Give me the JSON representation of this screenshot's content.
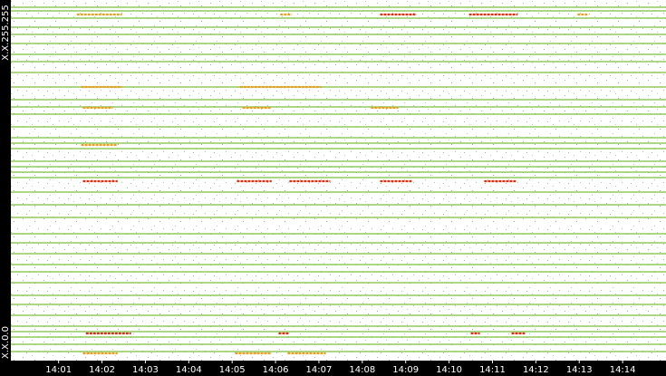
{
  "chart_data": {
    "type": "ip-timeline",
    "y_labels": {
      "top": "X.X.255.255",
      "bottom": "X.X.0.0"
    },
    "xlim": [
      -0.1,
      15.0
    ],
    "xticks": [
      {
        "value": 1,
        "label": "14:01"
      },
      {
        "value": 2,
        "label": "14:02"
      },
      {
        "value": 3,
        "label": "14:03"
      },
      {
        "value": 4,
        "label": "14:04"
      },
      {
        "value": 5,
        "label": "14:05"
      },
      {
        "value": 6,
        "label": "14:06"
      },
      {
        "value": 7,
        "label": "14:07"
      },
      {
        "value": 8,
        "label": "14:08"
      },
      {
        "value": 9,
        "label": "14:09"
      },
      {
        "value": 10,
        "label": "14:10"
      },
      {
        "value": 11,
        "label": "14:11"
      },
      {
        "value": 12,
        "label": "14:12"
      },
      {
        "value": 13,
        "label": "14:13"
      },
      {
        "value": 14,
        "label": "14:14"
      }
    ],
    "ylim": [
      0,
      65535
    ],
    "line_color": "#7dc142",
    "rows": [
      64866,
      64197,
      62860,
      61188,
      59851,
      58179,
      56172,
      54835,
      52829,
      50154,
      47813,
      46476,
      45139,
      42798,
      40792,
      39789,
      38786,
      36445,
      35442,
      34439,
      33436,
      30761,
      28421,
      26080,
      23071,
      21399,
      19393,
      17387,
      16049,
      14043,
      11703,
      10031,
      8025,
      6018,
      5015,
      4012,
      2675,
      1337
    ],
    "hot_segments": [
      {
        "address": 63528,
        "start": 1.42,
        "end": 2.46,
        "color": "#e8a020"
      },
      {
        "address": 63528,
        "start": 6.11,
        "end": 6.37,
        "color": "#e8a020"
      },
      {
        "address": 63528,
        "start": 8.41,
        "end": 9.25,
        "color": "#d83010"
      },
      {
        "address": 63528,
        "start": 10.46,
        "end": 11.58,
        "color": "#d83010"
      },
      {
        "address": 63528,
        "start": 12.96,
        "end": 13.21,
        "color": "#e8a020"
      },
      {
        "address": 50154,
        "start": 1.52,
        "end": 2.46,
        "color": "#e8a020"
      },
      {
        "address": 50154,
        "start": 5.18,
        "end": 7.05,
        "color": "#e8a020"
      },
      {
        "address": 46309,
        "start": 1.56,
        "end": 2.25,
        "color": "#e8a020"
      },
      {
        "address": 46309,
        "start": 5.24,
        "end": 5.91,
        "color": "#e8a020"
      },
      {
        "address": 46309,
        "start": 8.2,
        "end": 8.83,
        "color": "#e8a020"
      },
      {
        "address": 39454,
        "start": 1.52,
        "end": 2.36,
        "color": "#e8a020"
      },
      {
        "address": 32767,
        "start": 1.56,
        "end": 2.36,
        "color": "#d83010"
      },
      {
        "address": 32767,
        "start": 5.11,
        "end": 5.91,
        "color": "#d83010"
      },
      {
        "address": 32767,
        "start": 6.32,
        "end": 7.26,
        "color": "#d83010"
      },
      {
        "address": 32767,
        "start": 8.41,
        "end": 9.14,
        "color": "#d83010"
      },
      {
        "address": 32767,
        "start": 10.81,
        "end": 11.54,
        "color": "#d83010"
      },
      {
        "address": 4681,
        "start": 1.63,
        "end": 2.67,
        "color": "#d83010"
      },
      {
        "address": 4681,
        "start": 6.07,
        "end": 6.32,
        "color": "#d83010"
      },
      {
        "address": 4681,
        "start": 10.5,
        "end": 10.71,
        "color": "#d83010"
      },
      {
        "address": 4681,
        "start": 11.44,
        "end": 11.75,
        "color": "#d83010"
      },
      {
        "address": 1003,
        "start": 1.56,
        "end": 2.36,
        "color": "#e8a020"
      },
      {
        "address": 1003,
        "start": 5.07,
        "end": 5.91,
        "color": "#e8a020"
      },
      {
        "address": 1003,
        "start": 6.28,
        "end": 7.16,
        "color": "#e8a020"
      }
    ]
  }
}
